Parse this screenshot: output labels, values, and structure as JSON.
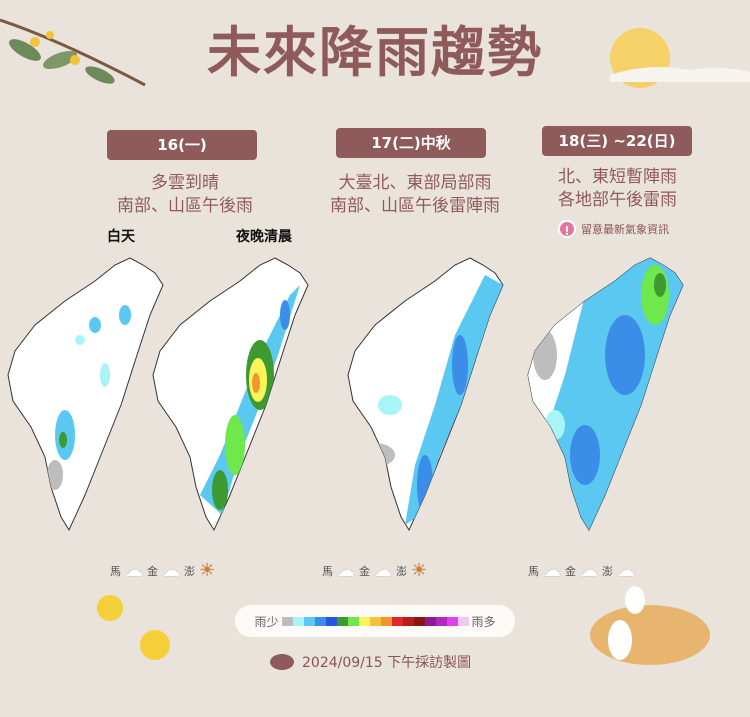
{
  "title": "未來降雨趨勢",
  "panels": [
    {
      "date": "16(一)",
      "desc1": "多雲到晴",
      "desc2": "南部、山區午後雨",
      "sub_day": "白天",
      "sub_night": "夜晚清晨",
      "islands": [
        {
          "name": "馬",
          "icon": "rain-cloud-icon"
        },
        {
          "name": "金",
          "icon": "cloud-icon"
        },
        {
          "name": "澎",
          "icon": "sun-cloud-icon"
        }
      ]
    },
    {
      "date": "17(二)中秋",
      "desc1": "大臺北、東部局部雨",
      "desc2": "南部、山區午後雷陣雨",
      "islands": [
        {
          "name": "馬",
          "icon": "rain-cloud-icon"
        },
        {
          "name": "金",
          "icon": "cloud-icon"
        },
        {
          "name": "澎",
          "icon": "sun-cloud-icon"
        }
      ]
    },
    {
      "date": "18(三) ~22(日)",
      "desc1": "北、東短暫陣雨",
      "desc2": "各地部午後雷雨",
      "notice": "留意最新氣象資訊",
      "islands": [
        {
          "name": "馬",
          "icon": "rain-cloud-icon"
        },
        {
          "name": "金",
          "icon": "rain-cloud-icon"
        },
        {
          "name": "澎",
          "icon": "rain-cloud-icon"
        }
      ]
    }
  ],
  "legend": {
    "low": "雨少",
    "high": "雨多",
    "colors": [
      "#bdbdbd",
      "#a8f4f8",
      "#5ac8f0",
      "#3a8ee8",
      "#2456e0",
      "#3c9a30",
      "#6ee84a",
      "#fcf55a",
      "#f5c23c",
      "#f0962c",
      "#e0282a",
      "#b41e20",
      "#8c1414",
      "#8c1c96",
      "#b428c0",
      "#e040f0",
      "#f4c8f4"
    ]
  },
  "footer": "2024/09/15 下午採訪製圖"
}
